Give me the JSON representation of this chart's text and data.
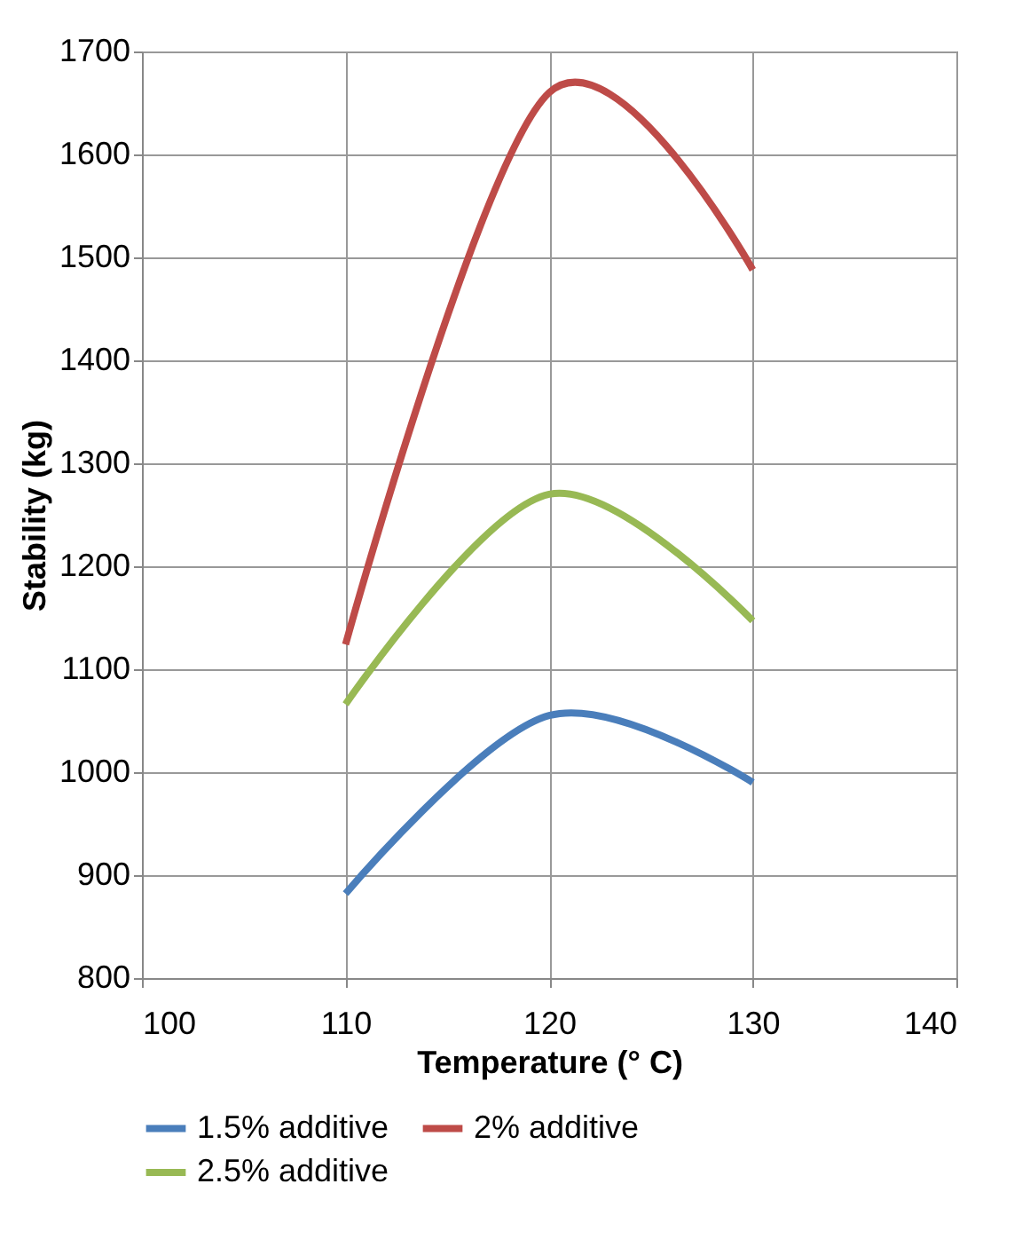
{
  "chart_data": {
    "type": "line",
    "xlabel": "Temperature (° C)",
    "ylabel": "Stability (kg)",
    "x": [
      110,
      120,
      130
    ],
    "series": [
      {
        "name": "1.5% additive",
        "color": "#4a7ebb",
        "values": [
          882,
          1055,
          990
        ]
      },
      {
        "name": "2% additive",
        "color": "#be4b48",
        "values": [
          1124,
          1660,
          1488
        ]
      },
      {
        "name": "2.5% additive",
        "color": "#98b954",
        "values": [
          1066,
          1270,
          1147
        ]
      }
    ],
    "xlim": [
      100,
      140
    ],
    "xticks": [
      100,
      110,
      120,
      130,
      140
    ],
    "ylim": [
      800,
      1700
    ],
    "yticks": [
      800,
      900,
      1000,
      1100,
      1200,
      1300,
      1400,
      1500,
      1600,
      1700
    ],
    "grid": true,
    "legend": "bottom",
    "marker": "none",
    "line_style": "solid"
  }
}
